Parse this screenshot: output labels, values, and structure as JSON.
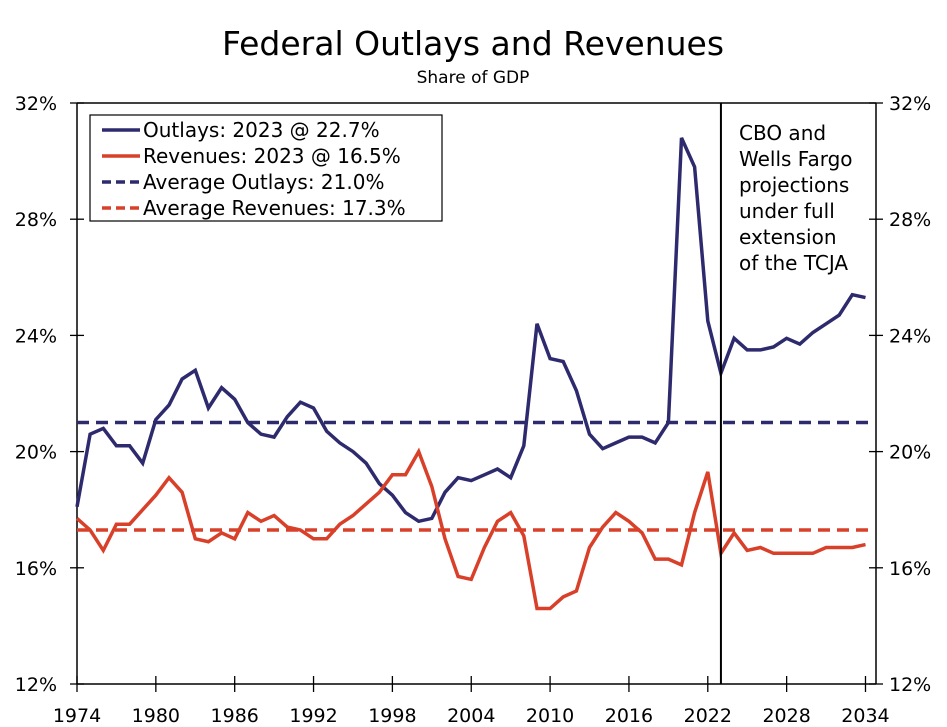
{
  "chart_data": {
    "type": "line",
    "title": "Federal Outlays and Revenues",
    "subtitle": "Share of GDP",
    "xlabel": "",
    "ylabel": "",
    "xlim": [
      1974,
      2034.8
    ],
    "ylim": [
      12,
      32
    ],
    "x_ticks": [
      1974,
      1980,
      1986,
      1992,
      1998,
      2004,
      2010,
      2016,
      2022,
      2028,
      2034
    ],
    "x_tick_labels": [
      "1974",
      "1980",
      "1986",
      "1992",
      "1998",
      "2004",
      "2010",
      "2016",
      "2022",
      "2028",
      "2034"
    ],
    "y_ticks": [
      12,
      16,
      20,
      24,
      28,
      32
    ],
    "y_tick_labels": [
      "12%",
      "16%",
      "20%",
      "24%",
      "28%",
      "32%"
    ],
    "grid": false,
    "legend_position": "top-left",
    "x": [
      1974,
      1975,
      1976,
      1977,
      1978,
      1979,
      1980,
      1981,
      1982,
      1983,
      1984,
      1985,
      1986,
      1987,
      1988,
      1989,
      1990,
      1991,
      1992,
      1993,
      1994,
      1995,
      1996,
      1997,
      1998,
      1999,
      2000,
      2001,
      2002,
      2003,
      2004,
      2005,
      2006,
      2007,
      2008,
      2009,
      2010,
      2011,
      2012,
      2013,
      2014,
      2015,
      2016,
      2017,
      2018,
      2019,
      2020,
      2021,
      2022,
      2023,
      2024,
      2025,
      2026,
      2027,
      2028,
      2029,
      2030,
      2031,
      2032,
      2033,
      2034
    ],
    "series": [
      {
        "name": "Outlays: 2023 @ 22.7%",
        "color": "#2e2a6e",
        "style": "solid",
        "values": [
          18.1,
          20.6,
          20.8,
          20.2,
          20.2,
          19.6,
          21.1,
          21.6,
          22.5,
          22.8,
          21.5,
          22.2,
          21.8,
          21.0,
          20.6,
          20.5,
          21.2,
          21.7,
          21.5,
          20.7,
          20.3,
          20.0,
          19.6,
          18.9,
          18.5,
          17.9,
          17.6,
          17.7,
          18.6,
          19.1,
          19.0,
          19.2,
          19.4,
          19.1,
          20.2,
          24.4,
          23.2,
          23.1,
          22.1,
          20.6,
          20.1,
          20.3,
          20.5,
          20.5,
          20.3,
          21.0,
          30.8,
          29.8,
          24.5,
          22.7,
          23.9,
          23.5,
          23.5,
          23.6,
          23.9,
          23.7,
          24.1,
          24.4,
          24.7,
          25.4,
          25.3
        ]
      },
      {
        "name": "Revenues: 2023 @ 16.5%",
        "color": "#d9402a",
        "style": "solid",
        "values": [
          17.7,
          17.3,
          16.6,
          17.5,
          17.5,
          18.0,
          18.5,
          19.1,
          18.6,
          17.0,
          16.9,
          17.2,
          17.0,
          17.9,
          17.6,
          17.8,
          17.4,
          17.3,
          17.0,
          17.0,
          17.5,
          17.8,
          18.2,
          18.6,
          19.2,
          19.2,
          20.0,
          18.8,
          17.0,
          15.7,
          15.6,
          16.7,
          17.6,
          17.9,
          17.1,
          14.6,
          14.6,
          15.0,
          15.2,
          16.7,
          17.4,
          17.9,
          17.6,
          17.2,
          16.3,
          16.3,
          16.1,
          17.9,
          19.3,
          16.5,
          17.2,
          16.6,
          16.7,
          16.5,
          16.5,
          16.5,
          16.5,
          16.7,
          16.7,
          16.7,
          16.8
        ]
      },
      {
        "name": "Average Outlays: 21.0%",
        "color": "#2e2a6e",
        "style": "dashed",
        "constant": 21.0
      },
      {
        "name": "Average Revenues: 17.3%",
        "color": "#d9402a",
        "style": "dashed",
        "constant": 17.3
      }
    ],
    "annotations": [
      {
        "type": "vertical-line",
        "x": 2023,
        "text_lines": [
          "CBO and",
          "Wells Fargo",
          "projections",
          "under full",
          "extension",
          "of the TCJA"
        ]
      }
    ]
  }
}
